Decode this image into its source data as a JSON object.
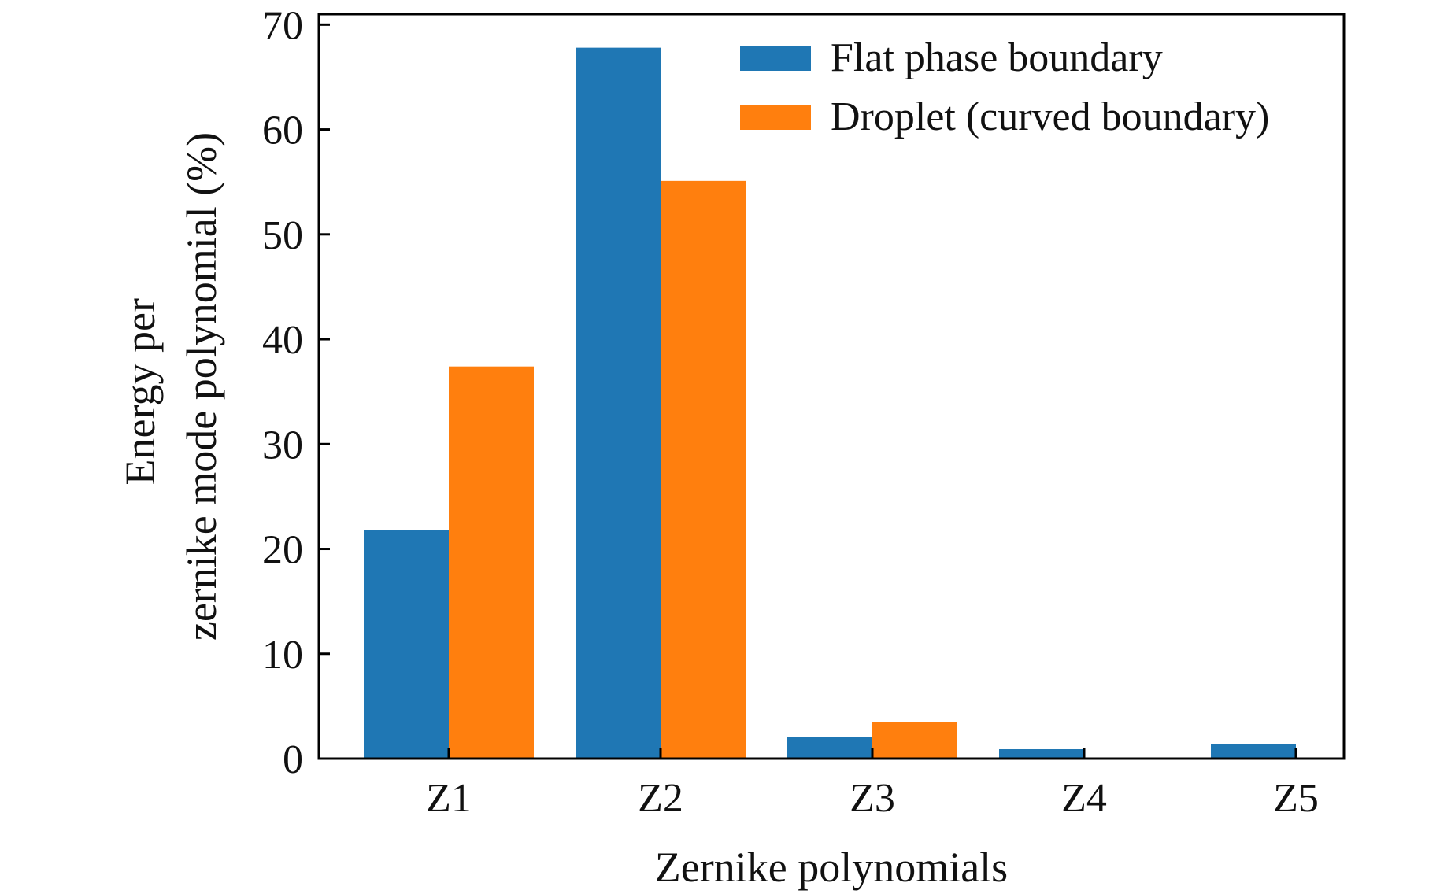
{
  "chart_data": {
    "type": "bar",
    "categories": [
      "Z1",
      "Z2",
      "Z3",
      "Z4",
      "Z5"
    ],
    "series": [
      {
        "name": "Flat phase boundary",
        "values": [
          21.8,
          67.8,
          2.1,
          0.9,
          1.4
        ],
        "color": "#1f77b4"
      },
      {
        "name": "Droplet (curved boundary)",
        "values": [
          37.4,
          55.1,
          3.5,
          0,
          0
        ],
        "color": "#ff7f0e"
      }
    ],
    "xlabel": "Zernike polynomials",
    "ylabel_lines": [
      "Energy per",
      "zernike mode polynomial (%)"
    ],
    "ylim": [
      0,
      71
    ],
    "yticks": [
      0,
      10,
      20,
      30,
      40,
      50,
      60,
      70
    ],
    "legend_position": "top-right",
    "grid": false
  }
}
